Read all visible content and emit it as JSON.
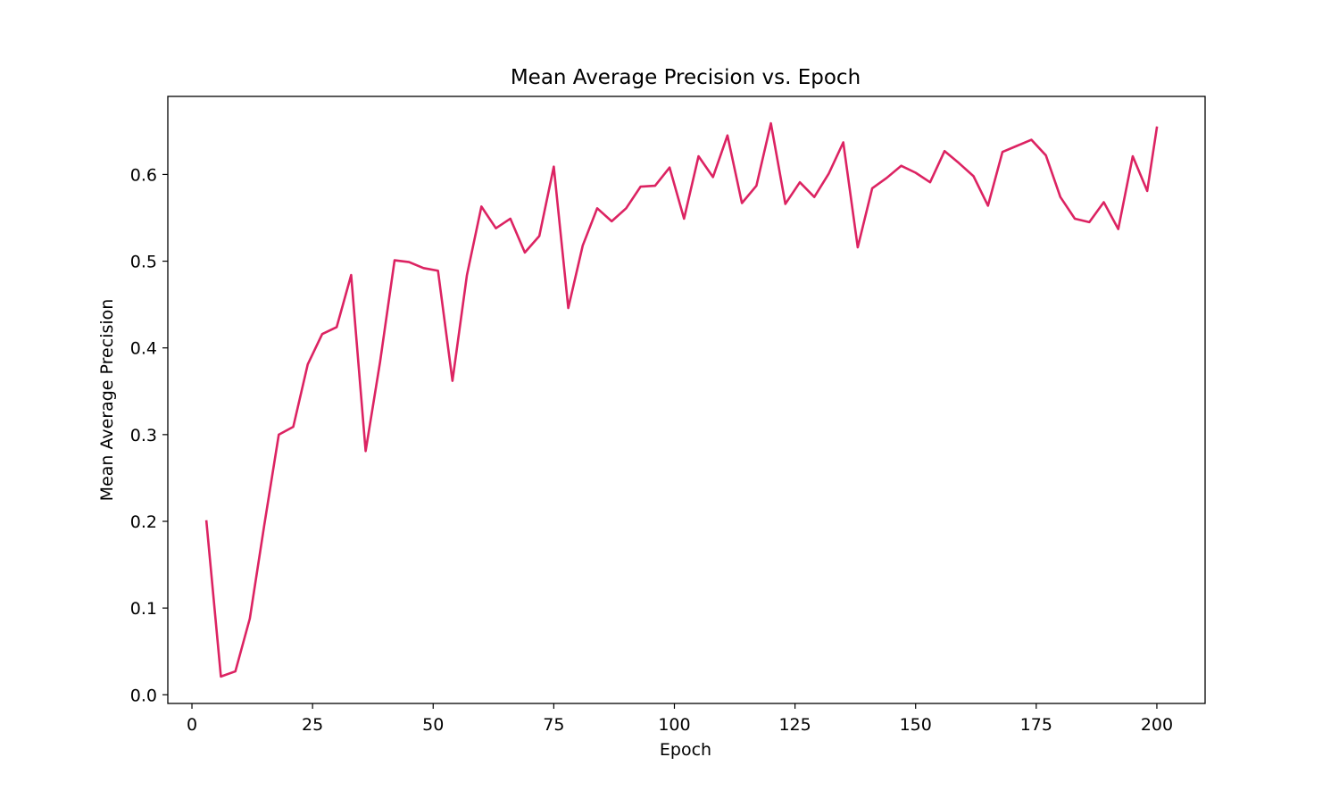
{
  "chart_data": {
    "type": "line",
    "title": "Mean Average Precision vs. Epoch",
    "xlabel": "Epoch",
    "ylabel": "Mean Average Precision",
    "xlim": [
      -5,
      210
    ],
    "ylim": [
      -0.01,
      0.69
    ],
    "x_ticks": [
      0,
      25,
      50,
      75,
      100,
      125,
      150,
      175,
      200
    ],
    "y_ticks": [
      0.0,
      0.1,
      0.2,
      0.3,
      0.4,
      0.5,
      0.6
    ],
    "grid": false,
    "legend": "none",
    "series": [
      {
        "color": "#dc2362",
        "x": [
          3,
          6,
          9,
          12,
          15,
          18,
          21,
          24,
          27,
          30,
          33,
          36,
          39,
          42,
          45,
          48,
          51,
          54,
          57,
          60,
          63,
          66,
          69,
          72,
          75,
          78,
          81,
          84,
          87,
          90,
          93,
          96,
          99,
          102,
          105,
          108,
          111,
          114,
          117,
          120,
          123,
          126,
          129,
          132,
          135,
          138,
          141,
          144,
          147,
          150,
          153,
          156,
          159,
          162,
          165,
          168,
          171,
          174,
          177,
          180,
          183,
          186,
          189,
          192,
          195,
          198,
          200
        ],
        "y": [
          0.2,
          0.021,
          0.027,
          0.088,
          0.196,
          0.3,
          0.309,
          0.381,
          0.416,
          0.424,
          0.484,
          0.281,
          0.384,
          0.501,
          0.499,
          0.492,
          0.489,
          0.362,
          0.484,
          0.563,
          0.538,
          0.549,
          0.51,
          0.529,
          0.609,
          0.446,
          0.518,
          0.561,
          0.546,
          0.561,
          0.586,
          0.587,
          0.608,
          0.549,
          0.621,
          0.597,
          0.645,
          0.567,
          0.587,
          0.659,
          0.566,
          0.591,
          0.574,
          0.601,
          0.637,
          0.516,
          0.584,
          0.596,
          0.61,
          0.602,
          0.591,
          0.627,
          0.613,
          0.598,
          0.564,
          0.626,
          0.633,
          0.64,
          0.622,
          0.574,
          0.549,
          0.545,
          0.568,
          0.537,
          0.621,
          0.581,
          0.654
        ]
      }
    ]
  }
}
